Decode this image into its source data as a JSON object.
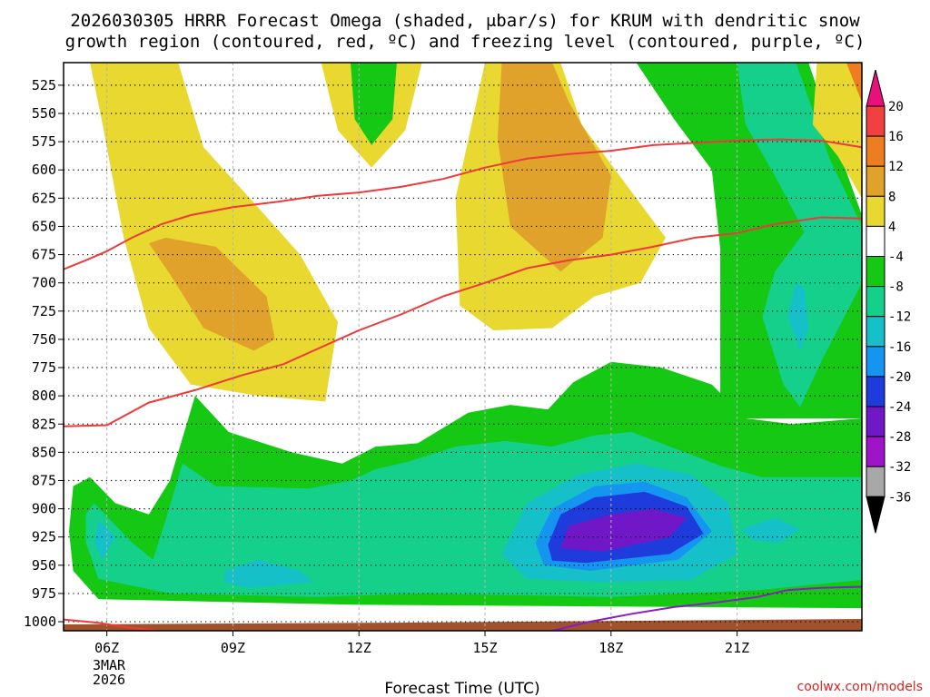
{
  "chart_data": {
    "type": "time-height contour",
    "title_line1": "2026030305 HRRR Forecast Omega (shaded, μbar/s) for KRUM with dendritic snow",
    "title_line2": "growth region (contoured, red, ºC) and freezing level (contoured, purple, ºC)",
    "xlabel": "Forecast Time (UTC)",
    "credit": "coolwx.com/models",
    "date_line1": "3MAR",
    "date_line2": "2026",
    "x_range_hours": [
      4.97,
      23.97
    ],
    "x_ticks": [
      {
        "hour": 6,
        "label": "06Z"
      },
      {
        "hour": 9,
        "label": "09Z"
      },
      {
        "hour": 12,
        "label": "12Z"
      },
      {
        "hour": 15,
        "label": "15Z"
      },
      {
        "hour": 18,
        "label": "18Z"
      },
      {
        "hour": 21,
        "label": "21Z"
      }
    ],
    "y_range_hpa": [
      1008,
      505
    ],
    "y_ticks": [
      525,
      550,
      575,
      600,
      625,
      650,
      675,
      700,
      725,
      750,
      775,
      800,
      825,
      850,
      875,
      900,
      925,
      950,
      975,
      1000
    ],
    "colorbar": {
      "levels": [
        20,
        16,
        12,
        8,
        4,
        -4,
        -8,
        -12,
        -16,
        -20,
        -24,
        -28,
        -32,
        -36
      ],
      "colors": [
        "#e8107a",
        "#f04040",
        "#ee7d22",
        "#e0a22a",
        "#e8d830",
        "#ffffff",
        "#14c814",
        "#14d08a",
        "#16c0c8",
        "#1496f0",
        "#1e3cdc",
        "#7018c8",
        "#a014c8",
        "#a8a8a8",
        "#000000"
      ]
    },
    "omega_regions": [
      {
        "value": 6,
        "pts": [
          [
            5.6,
            505
          ],
          [
            5.9,
            560
          ],
          [
            6.4,
            660
          ],
          [
            7.0,
            740
          ],
          [
            8.0,
            790
          ],
          [
            9.6,
            800
          ],
          [
            11.2,
            805
          ],
          [
            11.5,
            735
          ],
          [
            10.6,
            675
          ],
          [
            9.4,
            625
          ],
          [
            8.3,
            580
          ],
          [
            7.7,
            505
          ]
        ]
      },
      {
        "value": 9,
        "pts": [
          [
            7.0,
            665
          ],
          [
            7.5,
            692
          ],
          [
            8.3,
            740
          ],
          [
            9.5,
            760
          ],
          [
            10.0,
            750
          ],
          [
            9.8,
            712
          ],
          [
            8.6,
            668
          ],
          [
            7.4,
            660
          ]
        ]
      },
      {
        "value": 6,
        "pts": [
          [
            11.1,
            505
          ],
          [
            11.5,
            565
          ],
          [
            12.3,
            598
          ],
          [
            13.1,
            565
          ],
          [
            13.5,
            505
          ]
        ]
      },
      {
        "value": -6,
        "pts": [
          [
            11.8,
            505
          ],
          [
            11.9,
            555
          ],
          [
            12.3,
            578
          ],
          [
            12.8,
            555
          ],
          [
            12.9,
            505
          ]
        ]
      },
      {
        "value": 6,
        "pts": [
          [
            15.0,
            505
          ],
          [
            14.3,
            625
          ],
          [
            14.4,
            720
          ],
          [
            15.2,
            742
          ],
          [
            16.6,
            740
          ],
          [
            17.6,
            712
          ],
          [
            18.7,
            700
          ],
          [
            19.3,
            660
          ],
          [
            18.4,
            615
          ],
          [
            17.3,
            560
          ],
          [
            16.8,
            505
          ]
        ]
      },
      {
        "value": 10,
        "pts": [
          [
            15.4,
            505
          ],
          [
            15.3,
            572
          ],
          [
            15.6,
            650
          ],
          [
            16.8,
            690
          ],
          [
            17.8,
            660
          ],
          [
            18.0,
            605
          ],
          [
            17.0,
            540
          ],
          [
            16.6,
            505
          ]
        ]
      },
      {
        "value": -6,
        "pts": [
          [
            18.6,
            505
          ],
          [
            19.5,
            555
          ],
          [
            20.4,
            600
          ],
          [
            20.6,
            670
          ],
          [
            20.6,
            800
          ],
          [
            20.9,
            830
          ],
          [
            21.1,
            820
          ],
          [
            23.97,
            820
          ],
          [
            23.97,
            640
          ],
          [
            23.2,
            560
          ],
          [
            22.7,
            505
          ]
        ]
      },
      {
        "value": -10,
        "pts": [
          [
            21.0,
            505
          ],
          [
            21.2,
            560
          ],
          [
            21.9,
            605
          ],
          [
            22.6,
            655
          ],
          [
            21.9,
            690
          ],
          [
            21.6,
            730
          ],
          [
            22.1,
            790
          ],
          [
            22.5,
            810
          ],
          [
            23.0,
            770
          ],
          [
            23.97,
            700
          ],
          [
            23.97,
            650
          ],
          [
            23.2,
            590
          ],
          [
            22.4,
            505
          ]
        ]
      },
      {
        "value": -14,
        "pts": [
          [
            22.4,
            700
          ],
          [
            22.2,
            730
          ],
          [
            22.5,
            760
          ],
          [
            22.7,
            740
          ],
          [
            22.6,
            705
          ]
        ]
      },
      {
        "value": 6,
        "pts": [
          [
            22.9,
            505
          ],
          [
            23.97,
            505
          ],
          [
            23.97,
            625
          ],
          [
            23.4,
            588
          ],
          [
            22.8,
            560
          ]
        ]
      },
      {
        "value": 14,
        "pts": [
          [
            23.6,
            505
          ],
          [
            23.97,
            505
          ],
          [
            23.97,
            540
          ]
        ]
      },
      {
        "value": -6,
        "pts": [
          [
            5.1,
            920
          ],
          [
            5.2,
            880
          ],
          [
            5.6,
            872
          ],
          [
            6.2,
            895
          ],
          [
            7.0,
            905
          ],
          [
            7.5,
            875
          ],
          [
            8.1,
            800
          ],
          [
            8.9,
            832
          ],
          [
            10.4,
            850
          ],
          [
            11.6,
            860
          ],
          [
            12.4,
            845
          ],
          [
            13.4,
            842
          ],
          [
            14.6,
            815
          ],
          [
            15.6,
            808
          ],
          [
            16.5,
            812
          ],
          [
            17.1,
            788
          ],
          [
            18.0,
            770
          ],
          [
            19.2,
            775
          ],
          [
            20.4,
            790
          ],
          [
            21.2,
            820
          ],
          [
            22.3,
            825
          ],
          [
            23.97,
            820
          ],
          [
            23.97,
            988
          ],
          [
            12.0,
            985
          ],
          [
            5.8,
            980
          ],
          [
            5.2,
            955
          ]
        ]
      },
      {
        "value": -10,
        "pts": [
          [
            5.5,
            905
          ],
          [
            5.7,
            895
          ],
          [
            6.6,
            930
          ],
          [
            7.1,
            945
          ],
          [
            7.4,
            910
          ],
          [
            7.8,
            860
          ],
          [
            8.6,
            880
          ],
          [
            10.8,
            882
          ],
          [
            11.8,
            875
          ],
          [
            12.4,
            865
          ],
          [
            13.2,
            858
          ],
          [
            14.3,
            845
          ],
          [
            15.5,
            840
          ],
          [
            16.6,
            845
          ],
          [
            17.6,
            835
          ],
          [
            18.5,
            832
          ],
          [
            19.4,
            845
          ],
          [
            20.6,
            862
          ],
          [
            21.6,
            872
          ],
          [
            23.97,
            872
          ],
          [
            23.97,
            963
          ],
          [
            21.5,
            972
          ],
          [
            18.0,
            978
          ],
          [
            13.5,
            975
          ],
          [
            11.0,
            978
          ],
          [
            7.5,
            975
          ],
          [
            5.8,
            962
          ],
          [
            5.5,
            930
          ]
        ]
      },
      {
        "value": -14,
        "pts": [
          [
            5.8,
            910
          ],
          [
            6.2,
            925
          ],
          [
            5.9,
            945
          ],
          [
            5.7,
            930
          ]
        ]
      },
      {
        "value": -14,
        "pts": [
          [
            8.8,
            955
          ],
          [
            9.6,
            945
          ],
          [
            10.6,
            955
          ],
          [
            10.9,
            965
          ],
          [
            9.4,
            970
          ],
          [
            8.8,
            965
          ]
        ]
      },
      {
        "value": -14,
        "pts": [
          [
            15.4,
            940
          ],
          [
            16.0,
            895
          ],
          [
            17.2,
            870
          ],
          [
            18.6,
            860
          ],
          [
            19.9,
            870
          ],
          [
            20.8,
            895
          ],
          [
            21.0,
            940
          ],
          [
            19.9,
            963
          ],
          [
            17.8,
            965
          ],
          [
            16.0,
            962
          ]
        ]
      },
      {
        "value": -14,
        "pts": [
          [
            21.1,
            918
          ],
          [
            21.9,
            908
          ],
          [
            22.5,
            918
          ],
          [
            22.0,
            930
          ],
          [
            21.4,
            928
          ]
        ]
      },
      {
        "value": -18,
        "pts": [
          [
            16.2,
            930
          ],
          [
            16.6,
            900
          ],
          [
            17.6,
            880
          ],
          [
            18.8,
            876
          ],
          [
            19.8,
            890
          ],
          [
            20.4,
            920
          ],
          [
            19.6,
            945
          ],
          [
            17.5,
            955
          ],
          [
            16.4,
            950
          ]
        ]
      },
      {
        "value": -22,
        "pts": [
          [
            16.5,
            932
          ],
          [
            16.8,
            905
          ],
          [
            17.6,
            890
          ],
          [
            18.8,
            885
          ],
          [
            19.8,
            898
          ],
          [
            20.2,
            922
          ],
          [
            19.4,
            940
          ],
          [
            17.4,
            948
          ],
          [
            16.6,
            946
          ]
        ]
      },
      {
        "value": -26,
        "pts": [
          [
            16.8,
            935
          ],
          [
            17.0,
            915
          ],
          [
            18.0,
            905
          ],
          [
            19.0,
            900
          ],
          [
            19.8,
            908
          ],
          [
            19.4,
            925
          ],
          [
            17.8,
            938
          ]
        ]
      }
    ],
    "dgz_lines": [
      {
        "name": "-12C",
        "pts": [
          [
            4.97,
            688
          ],
          [
            5.5,
            680
          ],
          [
            6.0,
            672
          ],
          [
            6.6,
            660
          ],
          [
            7.3,
            648
          ],
          [
            8.0,
            640
          ],
          [
            9.0,
            633
          ],
          [
            10.1,
            628
          ],
          [
            11.0,
            623
          ],
          [
            12.0,
            620
          ],
          [
            13.0,
            615
          ],
          [
            14.0,
            608
          ],
          [
            15.0,
            598
          ],
          [
            16.0,
            590
          ],
          [
            17.0,
            586
          ],
          [
            18.0,
            583
          ],
          [
            19.0,
            578
          ],
          [
            20.0,
            576
          ],
          [
            21.0,
            574
          ],
          [
            22.0,
            573
          ],
          [
            23.0,
            574
          ],
          [
            23.97,
            580
          ]
        ]
      },
      {
        "name": "-18C",
        "pts": [
          [
            4.97,
            827
          ],
          [
            6.0,
            826
          ],
          [
            7.0,
            806
          ],
          [
            8.1,
            795
          ],
          [
            9.2,
            782
          ],
          [
            10.2,
            772
          ],
          [
            11.1,
            757
          ],
          [
            12.0,
            742
          ],
          [
            13.0,
            728
          ],
          [
            14.0,
            712
          ],
          [
            15.0,
            700
          ],
          [
            16.0,
            687
          ],
          [
            17.0,
            680
          ],
          [
            18.0,
            675
          ],
          [
            19.0,
            668
          ],
          [
            20.0,
            660
          ],
          [
            21.0,
            656
          ],
          [
            21.9,
            648
          ],
          [
            23.0,
            642
          ],
          [
            23.97,
            643
          ]
        ]
      },
      {
        "name": "-12C-low",
        "pts": [
          [
            4.97,
            998
          ],
          [
            5.8,
            1001
          ],
          [
            6.5,
            1005
          ],
          [
            7.2,
            1008
          ]
        ]
      }
    ],
    "freezing_line": [
      [
        16.6,
        1008
      ],
      [
        17.5,
        1000
      ],
      [
        18.5,
        993
      ],
      [
        19.5,
        987
      ],
      [
        20.5,
        983
      ],
      [
        21.5,
        978
      ],
      [
        22.2,
        972
      ],
      [
        23.0,
        970
      ],
      [
        23.97,
        969
      ]
    ]
  }
}
